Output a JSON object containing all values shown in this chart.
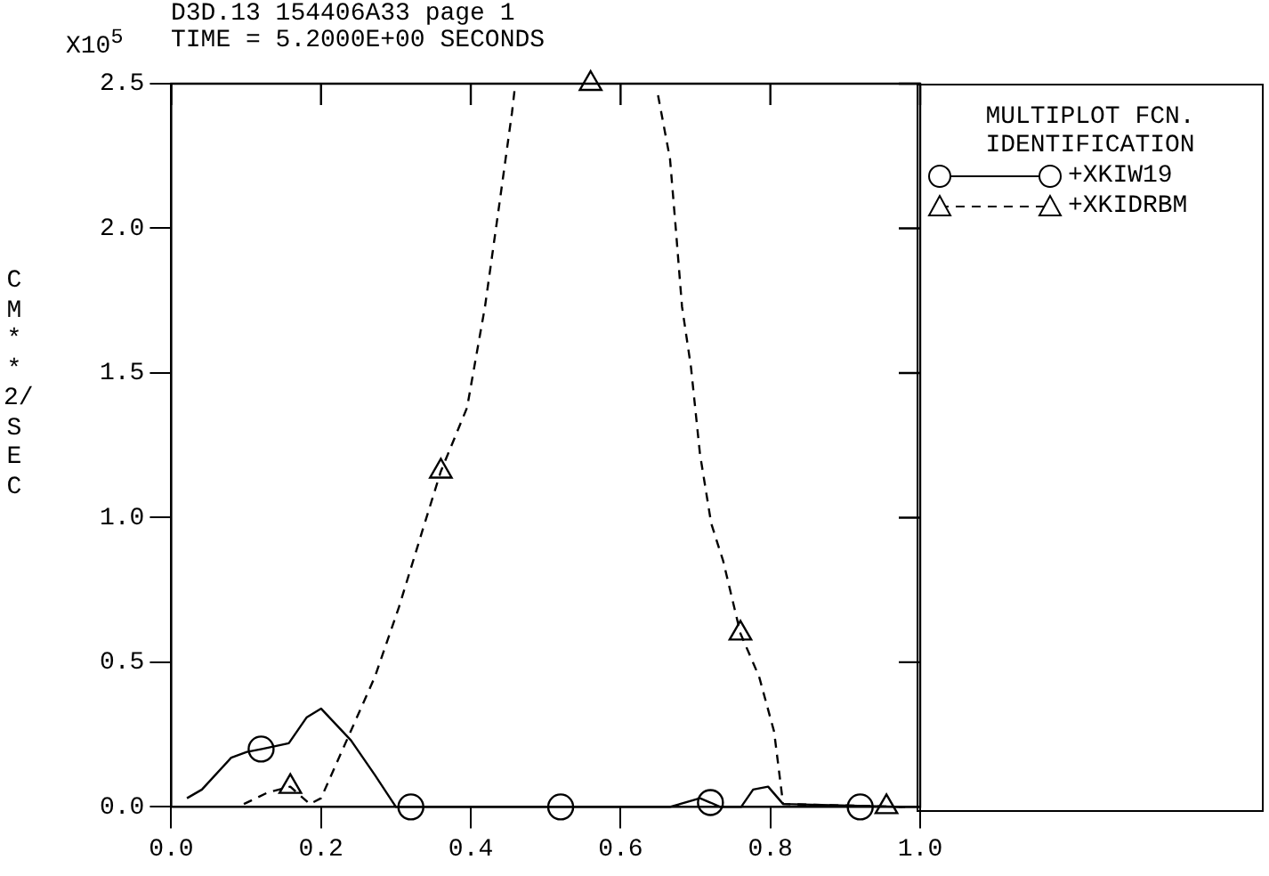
{
  "chart_data": {
    "type": "line",
    "title": "D3D.13 154406A33 page 1",
    "subtitle": "TIME = 5.2000E+00 SECONDS",
    "ylabel": "CM**2/SEC",
    "annotations": [
      "X10$^{5}$"
    ],
    "legend_title": "MULTIPLOT FCN. IDENTIFICATION",
    "legend": "right",
    "grid": false,
    "xlim": [
      0,
      1
    ],
    "xticks": [
      {
        "value": 0,
        "label": "0.0"
      },
      {
        "value": 0.2,
        "label": "0.2"
      },
      {
        "value": 0.4,
        "label": "0.4"
      },
      {
        "value": 0.6,
        "label": "0.6"
      },
      {
        "value": 0.8,
        "label": "0.8"
      },
      {
        "value": 1,
        "label": "1.0"
      }
    ],
    "ylim": [
      0,
      2.5
    ],
    "yticks": [
      {
        "value": 0,
        "label": "0.0"
      },
      {
        "value": 0.5,
        "label": "0.5"
      },
      {
        "value": 1,
        "label": "1.0"
      },
      {
        "value": 1.5,
        "label": "1.5"
      },
      {
        "value": 2,
        "label": "2.0"
      },
      {
        "value": 2.5,
        "label": "2.5"
      }
    ],
    "series": [
      {
        "name": "+XKIW19",
        "color": "#000000",
        "line_style": "solid",
        "marker": "none",
        "x": [
          0.021,
          0.041,
          0.08,
          0.101,
          0.121,
          0.157,
          0.181,
          0.2,
          0.24,
          0.272,
          0.3,
          0.5,
          0.666,
          0.706,
          0.72,
          0.733,
          0.761,
          0.777,
          0.797,
          0.817,
          0.98
        ],
        "values": [
          0.03,
          0.06,
          0.17,
          0.19,
          0.2,
          0.22,
          0.31,
          0.34,
          0.23,
          0.11,
          0,
          0,
          0,
          0.03,
          0.015,
          0,
          0,
          0.06,
          0.07,
          0.01,
          0
        ]
      },
      {
        "type": "scatter",
        "color": "#000000",
        "marker": "circle",
        "x": [
          0.12,
          0.32,
          0.52,
          0.72,
          0.92
        ],
        "values": [
          0.2,
          0,
          0,
          0.015,
          0
        ]
      },
      {
        "name": "+XKIDRBM",
        "color": "#000000",
        "line_style": "dashed",
        "marker": "none",
        "x": [
          0.097,
          0.129,
          0.159,
          0.185,
          0.2,
          0.272,
          0.304,
          0.336,
          0.36,
          0.395,
          0.419,
          0.439,
          0.455,
          0.459,
          0.56,
          0.65,
          0.666,
          0.674,
          0.682,
          0.694,
          0.706,
          0.721,
          0.737,
          0.76,
          0.785,
          0.805,
          0.817,
          0.98
        ],
        "values": [
          0.01,
          0.05,
          0.07,
          0.01,
          0.03,
          0.45,
          0.69,
          0.96,
          1.16,
          1.38,
          1.73,
          2.1,
          2.4,
          2.49,
          null,
          2.46,
          2.24,
          1.99,
          1.73,
          1.52,
          1.22,
          0.98,
          0.85,
          0.6,
          0.45,
          0.26,
          0.01,
          0
        ]
      },
      {
        "type": "scatter",
        "color": "#000000",
        "marker": "triangle",
        "x": [
          0.159,
          0.36,
          0.56,
          0.76,
          0.955
        ],
        "values": [
          0.07,
          1.16,
          2.5,
          0.6,
          0
        ]
      }
    ]
  }
}
